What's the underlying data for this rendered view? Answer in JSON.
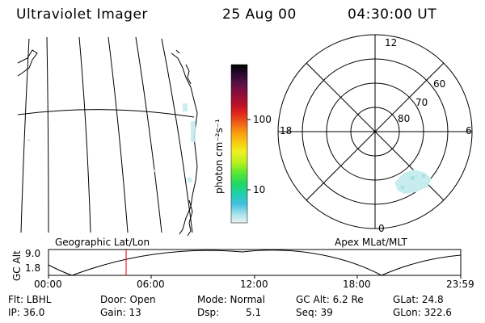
{
  "header": {
    "instrument": "Ultraviolet Imager",
    "date": "25 Aug 00",
    "time": "04:30:00 UT"
  },
  "colorbar": {
    "unit_label": "photon cm⁻²s⁻¹",
    "ticks": [
      "100",
      "10"
    ],
    "colors": [
      "#000000",
      "#2a0a30",
      "#5a1048",
      "#8a0f3a",
      "#b8102a",
      "#e0281e",
      "#f06018",
      "#f89a10",
      "#f8c810",
      "#f0f020",
      "#b8f020",
      "#60e830",
      "#20d860",
      "#20d0b0",
      "#40c0e0",
      "#a0e0e8",
      "#e8f4f4"
    ]
  },
  "left_panel": {
    "caption": "Geographic Lat/Lon"
  },
  "right_panel": {
    "caption": "Apex MLat/MLT",
    "mlt_labels": {
      "top": "12",
      "left": "18",
      "right": "6",
      "bottom": "0"
    },
    "lat_labels": [
      "60",
      "70",
      "80"
    ]
  },
  "orbit_plot": {
    "ylabel": "GC Alt",
    "y_ticks": [
      "9.0",
      "1.8"
    ],
    "x_ticks": [
      "00:00",
      "06:00",
      "12:00",
      "18:00",
      "23:59"
    ],
    "marker_color": "#e00000"
  },
  "status": {
    "flt": "Flt: LBHL",
    "ip": "IP: 36.0",
    "door": "Door: Open",
    "gain": "Gain: 13",
    "mode": "Mode: Normal",
    "dsp": "Dsp:",
    "dsp_value": "5.1",
    "gcalt": "GC Alt: 6.2 Re",
    "seq": "Seq: 39",
    "glat": "GLat:  24.8",
    "glon": "GLon: 322.6"
  }
}
